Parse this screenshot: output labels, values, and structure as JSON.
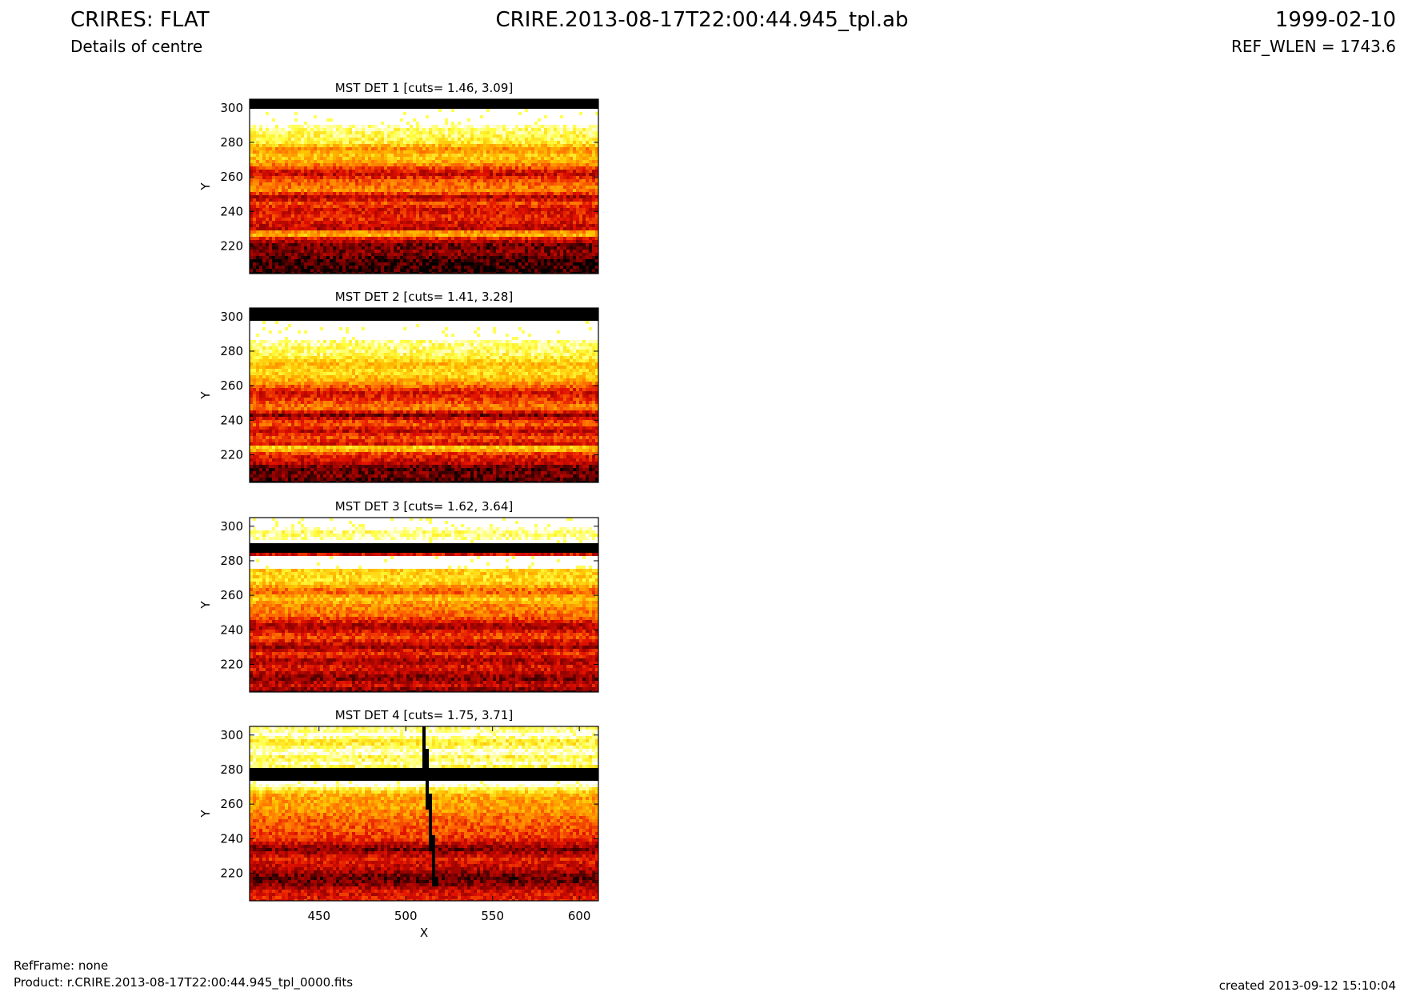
{
  "header": {
    "title": "CRIRES: FLAT",
    "subtitle": "Details of centre",
    "file": "CRIRE.2013-08-17T22:00:44.945_tpl.ab",
    "date": "1999-02-10",
    "ref_wlen": "REF_WLEN = 1743.6"
  },
  "footer": {
    "refframe": "RefFrame: none",
    "product": "Product: r.CRIRE.2013-08-17T22:00:44.945_tpl_0000.fits",
    "created": "created 2013-09-12 15:10:04"
  },
  "colors": {
    "colormap": [
      "#000000",
      "#8b0000",
      "#e11000",
      "#ff7000",
      "#ffc000",
      "#ffff40",
      "#ffffff"
    ]
  },
  "chart_data": [
    {
      "type": "heatmap",
      "title": "MST DET 1 [cuts= 1.46, 3.09]",
      "xlabel": "",
      "ylabel": "Y",
      "xlim": [
        410,
        611
      ],
      "ylim": [
        204,
        305
      ],
      "xticks": [],
      "yticks": [
        220,
        240,
        260,
        280,
        300
      ],
      "colorscale": "hot",
      "cuts": [
        1.46,
        3.09
      ],
      "row_profile": [
        {
          "y": 204,
          "level": 0.05
        },
        {
          "y": 212,
          "level": 0.08
        },
        {
          "y": 216,
          "level": 0.18
        },
        {
          "y": 220,
          "level": 0.12
        },
        {
          "y": 224,
          "level": 0.3
        },
        {
          "y": 227,
          "level": 0.75
        },
        {
          "y": 230,
          "level": 0.25
        },
        {
          "y": 236,
          "level": 0.38
        },
        {
          "y": 241,
          "level": 0.3
        },
        {
          "y": 245,
          "level": 0.45
        },
        {
          "y": 248,
          "level": 0.2
        },
        {
          "y": 252,
          "level": 0.55
        },
        {
          "y": 258,
          "level": 0.45
        },
        {
          "y": 262,
          "level": 0.25
        },
        {
          "y": 268,
          "level": 0.6
        },
        {
          "y": 272,
          "level": 0.7
        },
        {
          "y": 276,
          "level": 0.55
        },
        {
          "y": 280,
          "level": 0.8
        },
        {
          "y": 289,
          "level": 0.9
        },
        {
          "y": 290,
          "level": 1.0
        },
        {
          "y": 299,
          "level": 1.0
        },
        {
          "y": 300,
          "level": 0.0
        },
        {
          "y": 305,
          "level": 0.0
        }
      ]
    },
    {
      "type": "heatmap",
      "title": "MST DET 2 [cuts= 1.41, 3.28]",
      "xlabel": "",
      "ylabel": "Y",
      "xlim": [
        410,
        611
      ],
      "ylim": [
        204,
        305
      ],
      "xticks": [],
      "yticks": [
        220,
        240,
        260,
        280,
        300
      ],
      "colorscale": "hot",
      "cuts": [
        1.41,
        3.28
      ],
      "row_profile": [
        {
          "y": 204,
          "level": 0.05
        },
        {
          "y": 208,
          "level": 0.15
        },
        {
          "y": 212,
          "level": 0.1
        },
        {
          "y": 216,
          "level": 0.3
        },
        {
          "y": 220,
          "level": 0.35
        },
        {
          "y": 224,
          "level": 0.8
        },
        {
          "y": 226,
          "level": 0.3
        },
        {
          "y": 230,
          "level": 0.45
        },
        {
          "y": 234,
          "level": 0.25
        },
        {
          "y": 238,
          "level": 0.5
        },
        {
          "y": 243,
          "level": 0.15
        },
        {
          "y": 247,
          "level": 0.55
        },
        {
          "y": 252,
          "level": 0.4
        },
        {
          "y": 256,
          "level": 0.3
        },
        {
          "y": 262,
          "level": 0.6
        },
        {
          "y": 268,
          "level": 0.75
        },
        {
          "y": 272,
          "level": 0.65
        },
        {
          "y": 278,
          "level": 0.85
        },
        {
          "y": 286,
          "level": 0.9
        },
        {
          "y": 287,
          "level": 1.0
        },
        {
          "y": 297,
          "level": 1.0
        },
        {
          "y": 298,
          "level": 0.0
        },
        {
          "y": 305,
          "level": 0.0
        }
      ]
    },
    {
      "type": "heatmap",
      "title": "MST DET 3 [cuts= 1.62, 3.64]",
      "xlabel": "",
      "ylabel": "Y",
      "xlim": [
        410,
        611
      ],
      "ylim": [
        204,
        305
      ],
      "xticks": [],
      "yticks": [
        220,
        240,
        260,
        280,
        300
      ],
      "colorscale": "hot",
      "cuts": [
        1.62,
        3.64
      ],
      "row_profile": [
        {
          "y": 204,
          "level": 0.12
        },
        {
          "y": 208,
          "level": 0.3
        },
        {
          "y": 212,
          "level": 0.15
        },
        {
          "y": 218,
          "level": 0.35
        },
        {
          "y": 222,
          "level": 0.2
        },
        {
          "y": 226,
          "level": 0.4
        },
        {
          "y": 230,
          "level": 0.2
        },
        {
          "y": 236,
          "level": 0.45
        },
        {
          "y": 242,
          "level": 0.2
        },
        {
          "y": 248,
          "level": 0.5
        },
        {
          "y": 254,
          "level": 0.55
        },
        {
          "y": 258,
          "level": 0.7
        },
        {
          "y": 262,
          "level": 0.45
        },
        {
          "y": 268,
          "level": 0.75
        },
        {
          "y": 275,
          "level": 0.7
        },
        {
          "y": 276,
          "level": 1.0
        },
        {
          "y": 283,
          "level": 1.0
        },
        {
          "y": 284,
          "level": 0.0
        },
        {
          "y": 290,
          "level": 0.0
        },
        {
          "y": 291,
          "level": 1.0
        },
        {
          "y": 296,
          "level": 0.85
        },
        {
          "y": 299,
          "level": 1.0
        },
        {
          "y": 305,
          "level": 1.0
        }
      ]
    },
    {
      "type": "heatmap",
      "title": "MST DET 4 [cuts= 1.75, 3.71]",
      "xlabel": "X",
      "ylabel": "Y",
      "xlim": [
        410,
        611
      ],
      "ylim": [
        204,
        305
      ],
      "xticks": [
        450,
        500,
        550,
        600
      ],
      "yticks": [
        220,
        240,
        260,
        280,
        300
      ],
      "colorscale": "hot",
      "cuts": [
        1.75,
        3.71
      ],
      "row_profile": [
        {
          "y": 204,
          "level": 0.35
        },
        {
          "y": 210,
          "level": 0.3
        },
        {
          "y": 214,
          "level": 0.15
        },
        {
          "y": 218,
          "level": 0.12
        },
        {
          "y": 222,
          "level": 0.25
        },
        {
          "y": 228,
          "level": 0.35
        },
        {
          "y": 234,
          "level": 0.15
        },
        {
          "y": 240,
          "level": 0.4
        },
        {
          "y": 246,
          "level": 0.45
        },
        {
          "y": 252,
          "level": 0.5
        },
        {
          "y": 258,
          "level": 0.6
        },
        {
          "y": 264,
          "level": 0.6
        },
        {
          "y": 268,
          "level": 0.75
        },
        {
          "y": 271,
          "level": 1.0
        },
        {
          "y": 273,
          "level": 1.0
        },
        {
          "y": 274,
          "level": 0.0
        },
        {
          "y": 281,
          "level": 0.0
        },
        {
          "y": 282,
          "level": 1.0
        },
        {
          "y": 287,
          "level": 0.8
        },
        {
          "y": 290,
          "level": 1.0
        },
        {
          "y": 296,
          "level": 0.75
        },
        {
          "y": 300,
          "level": 1.0
        },
        {
          "y": 305,
          "level": 0.85
        }
      ],
      "annotations": [
        "dark near-vertical streak from (510, 305) to (517, 212)"
      ]
    }
  ]
}
